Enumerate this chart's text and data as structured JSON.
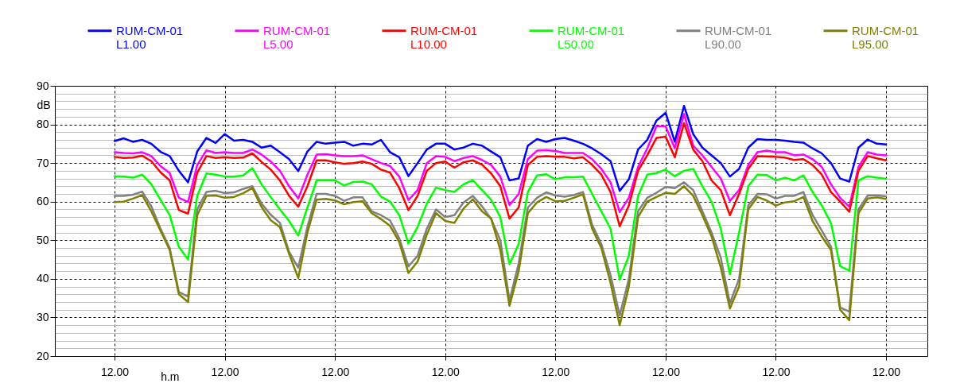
{
  "chart_data": {
    "type": "line",
    "xlabel": "h.m",
    "ylabel": "dB",
    "legend": "top",
    "grid": true,
    "categories": [
      null,
      null,
      null,
      null,
      null,
      null,
      "12.00",
      null,
      null,
      null,
      null,
      null,
      null,
      null,
      null,
      null,
      null,
      null,
      "12.00",
      null,
      null,
      null,
      null,
      null,
      null,
      null,
      null,
      null,
      null,
      null,
      "12.00",
      null,
      null,
      null,
      null,
      null,
      null,
      null,
      null,
      null,
      null,
      null,
      "12.00",
      null,
      null,
      null,
      null,
      null,
      null,
      null,
      null,
      null,
      null,
      null,
      "12.00",
      null,
      null,
      null,
      null,
      null,
      null,
      null,
      null,
      null,
      null,
      null,
      "12.00",
      null,
      null,
      null,
      null,
      null,
      null,
      null,
      null,
      null,
      null,
      null,
      "12.00",
      null,
      null,
      null,
      null,
      null,
      null,
      null,
      null,
      null,
      null,
      null,
      "12.00",
      null,
      null,
      null,
      null
    ],
    "ylim": [
      20,
      90
    ],
    "yticks": [
      20,
      {
        "value": 22,
        "label": null
      },
      {
        "value": 24,
        "label": null
      },
      {
        "value": 26,
        "label": null
      },
      {
        "value": 28,
        "label": null
      },
      30,
      {
        "value": 32,
        "label": null
      },
      {
        "value": 34,
        "label": null
      },
      {
        "value": 36,
        "label": null
      },
      {
        "value": 38,
        "label": null
      },
      40,
      {
        "value": 42,
        "label": null
      },
      {
        "value": 44,
        "label": null
      },
      {
        "value": 46,
        "label": null
      },
      {
        "value": 48,
        "label": null
      },
      50,
      {
        "value": 52,
        "label": null
      },
      {
        "value": 54,
        "label": null
      },
      {
        "value": 56,
        "label": null
      },
      {
        "value": 58,
        "label": null
      },
      60,
      {
        "value": 62,
        "label": null
      },
      {
        "value": 64,
        "label": null
      },
      {
        "value": 66,
        "label": null
      },
      {
        "value": 68,
        "label": null
      },
      70,
      {
        "value": 72,
        "label": null
      },
      {
        "value": 74,
        "label": null
      },
      {
        "value": 76,
        "label": null
      },
      {
        "value": 78,
        "label": null
      },
      80,
      {
        "value": 82,
        "label": null
      },
      {
        "value": 84,
        "label": null
      },
      {
        "value": 86,
        "label": null
      },
      {
        "value": 88,
        "label": null
      },
      90
    ],
    "series": [
      {
        "name": "RUM-CM-01 L1.00",
        "color": "#0000ff",
        "values": [
          null,
          null,
          null,
          null,
          null,
          null,
          75.7,
          76.4,
          75.5,
          76,
          75,
          72.9,
          71.8,
          68,
          65,
          73,
          76.5,
          75.2,
          77.5,
          75.8,
          76,
          75.5,
          74,
          74.5,
          72.8,
          71,
          67.9,
          73,
          75.5,
          75,
          75.3,
          75.5,
          74.5,
          75,
          74.8,
          76,
          72.8,
          71.5,
          66.6,
          70,
          73.5,
          75,
          75,
          73.5,
          74,
          75,
          74.5,
          73,
          71.5,
          65.5,
          66,
          74.5,
          76.2,
          75.5,
          76.2,
          76.5,
          75.8,
          75,
          73.8,
          72.3,
          70.5,
          62.8,
          65.8,
          73.5,
          76,
          81,
          83,
          75.5,
          84.8,
          77.5,
          74,
          72,
          70,
          66.5,
          68.5,
          74,
          76.2,
          76,
          76,
          75.8,
          75.5,
          75.3,
          73.8,
          72.5,
          70,
          66,
          65.2,
          74,
          76.1,
          75,
          74.8,
          null,
          null,
          null,
          null
        ]
      },
      {
        "name": "RUM-CM-01 L5.00",
        "color": "#ff00ff",
        "values": [
          null,
          null,
          null,
          null,
          null,
          null,
          72.8,
          72.6,
          72.5,
          72.8,
          71.8,
          69.2,
          67.4,
          61,
          59.9,
          69.5,
          73.3,
          72.6,
          72.8,
          72.6,
          72.6,
          73.5,
          72.2,
          70.4,
          68,
          64,
          60.8,
          67,
          72.2,
          72.3,
          72,
          71.8,
          71.8,
          72,
          71,
          70,
          69.2,
          66.5,
          60.4,
          63,
          70,
          71.8,
          71.6,
          70.5,
          71.3,
          71.8,
          70.8,
          69.5,
          66.5,
          59.1,
          62,
          71,
          73.2,
          73.3,
          73.1,
          72.6,
          72.6,
          72.6,
          71,
          68.5,
          65,
          57.3,
          61,
          69,
          73.8,
          79.5,
          79.5,
          73.8,
          82.7,
          74.5,
          72,
          69,
          66,
          60.2,
          63,
          69.5,
          72.8,
          73.2,
          72.8,
          72.8,
          72,
          72.2,
          71,
          69,
          64.5,
          61,
          58.7,
          69,
          72.8,
          72.2,
          72,
          null,
          null,
          null,
          null
        ]
      },
      {
        "name": "RUM-CM-01 L10.00",
        "color": "#ff0000",
        "values": [
          null,
          null,
          null,
          null,
          null,
          null,
          71.6,
          71.3,
          71.4,
          71.9,
          70.5,
          67.6,
          65.5,
          57.8,
          56.9,
          67.5,
          71.8,
          71.3,
          71.5,
          71.3,
          71.4,
          72.5,
          70.3,
          68.3,
          65.5,
          61.5,
          58.7,
          64,
          70.7,
          70.7,
          70.2,
          69.8,
          70,
          70.4,
          69.8,
          68.3,
          67.5,
          63.5,
          57.8,
          61.5,
          68,
          70,
          70.4,
          68.8,
          70.2,
          70.7,
          69.6,
          67.3,
          64,
          55.6,
          58.5,
          69.5,
          71.6,
          71.8,
          71.6,
          71.6,
          71.2,
          71.5,
          69.5,
          67,
          62.5,
          53.6,
          59,
          68,
          72,
          76.5,
          76.8,
          71.5,
          80.3,
          73.5,
          70.5,
          65.5,
          63,
          56.5,
          62,
          68.5,
          71.8,
          71.7,
          71.6,
          71.4,
          70.8,
          71,
          69.5,
          67,
          62.5,
          60,
          57.4,
          68,
          71.8,
          71.2,
          70.7,
          null,
          null,
          null,
          null
        ]
      },
      {
        "name": "RUM-CM-01 L50.00",
        "color": "#00ff00",
        "values": [
          null,
          null,
          null,
          null,
          null,
          null,
          66.6,
          66.5,
          66.2,
          67,
          64.5,
          60.5,
          56.5,
          48.3,
          45,
          61.5,
          67.3,
          67,
          66.5,
          66.5,
          66.8,
          68.7,
          64.5,
          61.2,
          58,
          55,
          51.2,
          58.5,
          65.5,
          65.5,
          65.5,
          64.2,
          65.1,
          65.2,
          64.5,
          61.3,
          60,
          56.5,
          49.1,
          53.5,
          59.5,
          63.6,
          63,
          62.5,
          64.5,
          65.6,
          63,
          60.5,
          56,
          43.8,
          49,
          62.5,
          66.8,
          67.1,
          65.8,
          66.3,
          66.3,
          66.5,
          62,
          57.5,
          53,
          39.8,
          46,
          61.5,
          67,
          67.4,
          68.3,
          66.6,
          68,
          68.5,
          64,
          60,
          53,
          41.2,
          52,
          64,
          67,
          66.9,
          65.5,
          66.2,
          65.5,
          66.8,
          62.5,
          59,
          54.5,
          43.3,
          42.1,
          65.5,
          66.6,
          66.2,
          65.9,
          null,
          null,
          null,
          null
        ]
      },
      {
        "name": "RUM-CM-01 L90.00",
        "color": "#808080",
        "values": [
          null,
          null,
          null,
          null,
          null,
          null,
          61.5,
          61.5,
          61.8,
          62.6,
          58.8,
          53,
          48,
          36.6,
          35.4,
          58,
          62.5,
          62.8,
          62.2,
          62.4,
          63.3,
          64,
          59.5,
          56.6,
          54.5,
          47,
          42.9,
          53.5,
          62,
          62,
          61.5,
          60.2,
          61.1,
          61.1,
          57.5,
          56.5,
          55.1,
          50.5,
          43.2,
          46,
          53,
          58,
          56,
          56.5,
          59.8,
          61.5,
          58.8,
          55.5,
          50,
          34.4,
          44,
          58.5,
          61,
          62.4,
          61.6,
          61.3,
          61.7,
          62.5,
          54,
          49,
          41,
          30.5,
          40,
          57.5,
          61,
          62.3,
          63.8,
          63.5,
          65,
          63,
          57.5,
          52,
          45.5,
          33.7,
          40,
          59,
          62,
          61.9,
          60.8,
          61.5,
          61.5,
          62.5,
          56.5,
          52.5,
          48.4,
          32.6,
          31.5,
          58,
          61.6,
          61.6,
          61.4,
          null,
          null,
          null,
          null
        ]
      },
      {
        "name": "RUM-CM-01 L95.00",
        "color": "#808000",
        "values": [
          null,
          null,
          null,
          null,
          null,
          null,
          59.9,
          60,
          60.8,
          61.7,
          57.5,
          52.5,
          47.5,
          36,
          34,
          56.5,
          61.5,
          61.6,
          61,
          61.2,
          62.2,
          63.5,
          58.6,
          55.2,
          53.4,
          46.5,
          40.2,
          52,
          60.5,
          60.7,
          60.3,
          59.3,
          59.9,
          60.1,
          57,
          55.5,
          53.7,
          49.5,
          41.5,
          44.5,
          51.5,
          57,
          55,
          54.5,
          58.2,
          60.6,
          57.5,
          55.6,
          47.5,
          33,
          42,
          57,
          59.8,
          61.2,
          60.1,
          60.2,
          61,
          61.9,
          53,
          48,
          39,
          28,
          38,
          56,
          60,
          61.2,
          62.3,
          62,
          64,
          61.5,
          56.5,
          51,
          43,
          32.3,
          38,
          58,
          61.2,
          60.3,
          59,
          59.8,
          60.1,
          61.2,
          55,
          51,
          47.5,
          32,
          29.3,
          57,
          60.8,
          61.1,
          60.7,
          null,
          null,
          null,
          null
        ]
      }
    ]
  }
}
